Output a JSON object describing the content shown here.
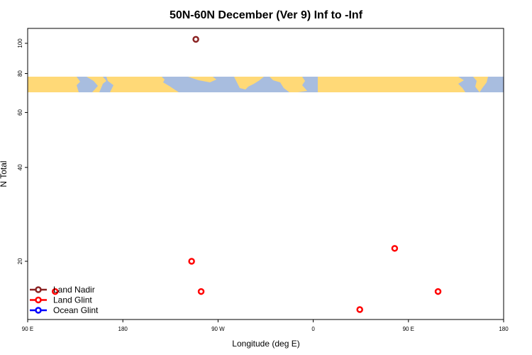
{
  "chart_data": {
    "type": "scatter",
    "title": "50N-60N December (Ver 9)   Inf to -Inf",
    "xlabel": "Longitude (deg E)",
    "ylabel": "N Total",
    "x_ticks": [
      {
        "value": 90,
        "label": "90 E"
      },
      {
        "value": 180,
        "label": "180"
      },
      {
        "value": 270,
        "label": "90 W"
      },
      {
        "value": 360,
        "label": "0"
      },
      {
        "value": 450,
        "label": "90 E"
      },
      {
        "value": 540,
        "label": "180"
      }
    ],
    "y_ticks": [
      20,
      40,
      60,
      80,
      100
    ],
    "xlim": [
      90,
      540
    ],
    "y_scale": "log",
    "series": [
      {
        "name": "Land Nadir",
        "color": "#8b2323",
        "points": [
          [
            249,
            103
          ]
        ]
      },
      {
        "name": "Land Glint",
        "color": "#ff0000",
        "points": [
          [
            116,
            16
          ],
          [
            245,
            20
          ],
          [
            254,
            16
          ],
          [
            404,
            14
          ],
          [
            437,
            22
          ],
          [
            478,
            16
          ]
        ]
      },
      {
        "name": "Ocean Glint",
        "color": "#0000ff",
        "points": []
      }
    ],
    "map_band": {
      "description": "world map strip",
      "ocean_color": "#a8bddf",
      "land_color": "#ffd977"
    }
  }
}
